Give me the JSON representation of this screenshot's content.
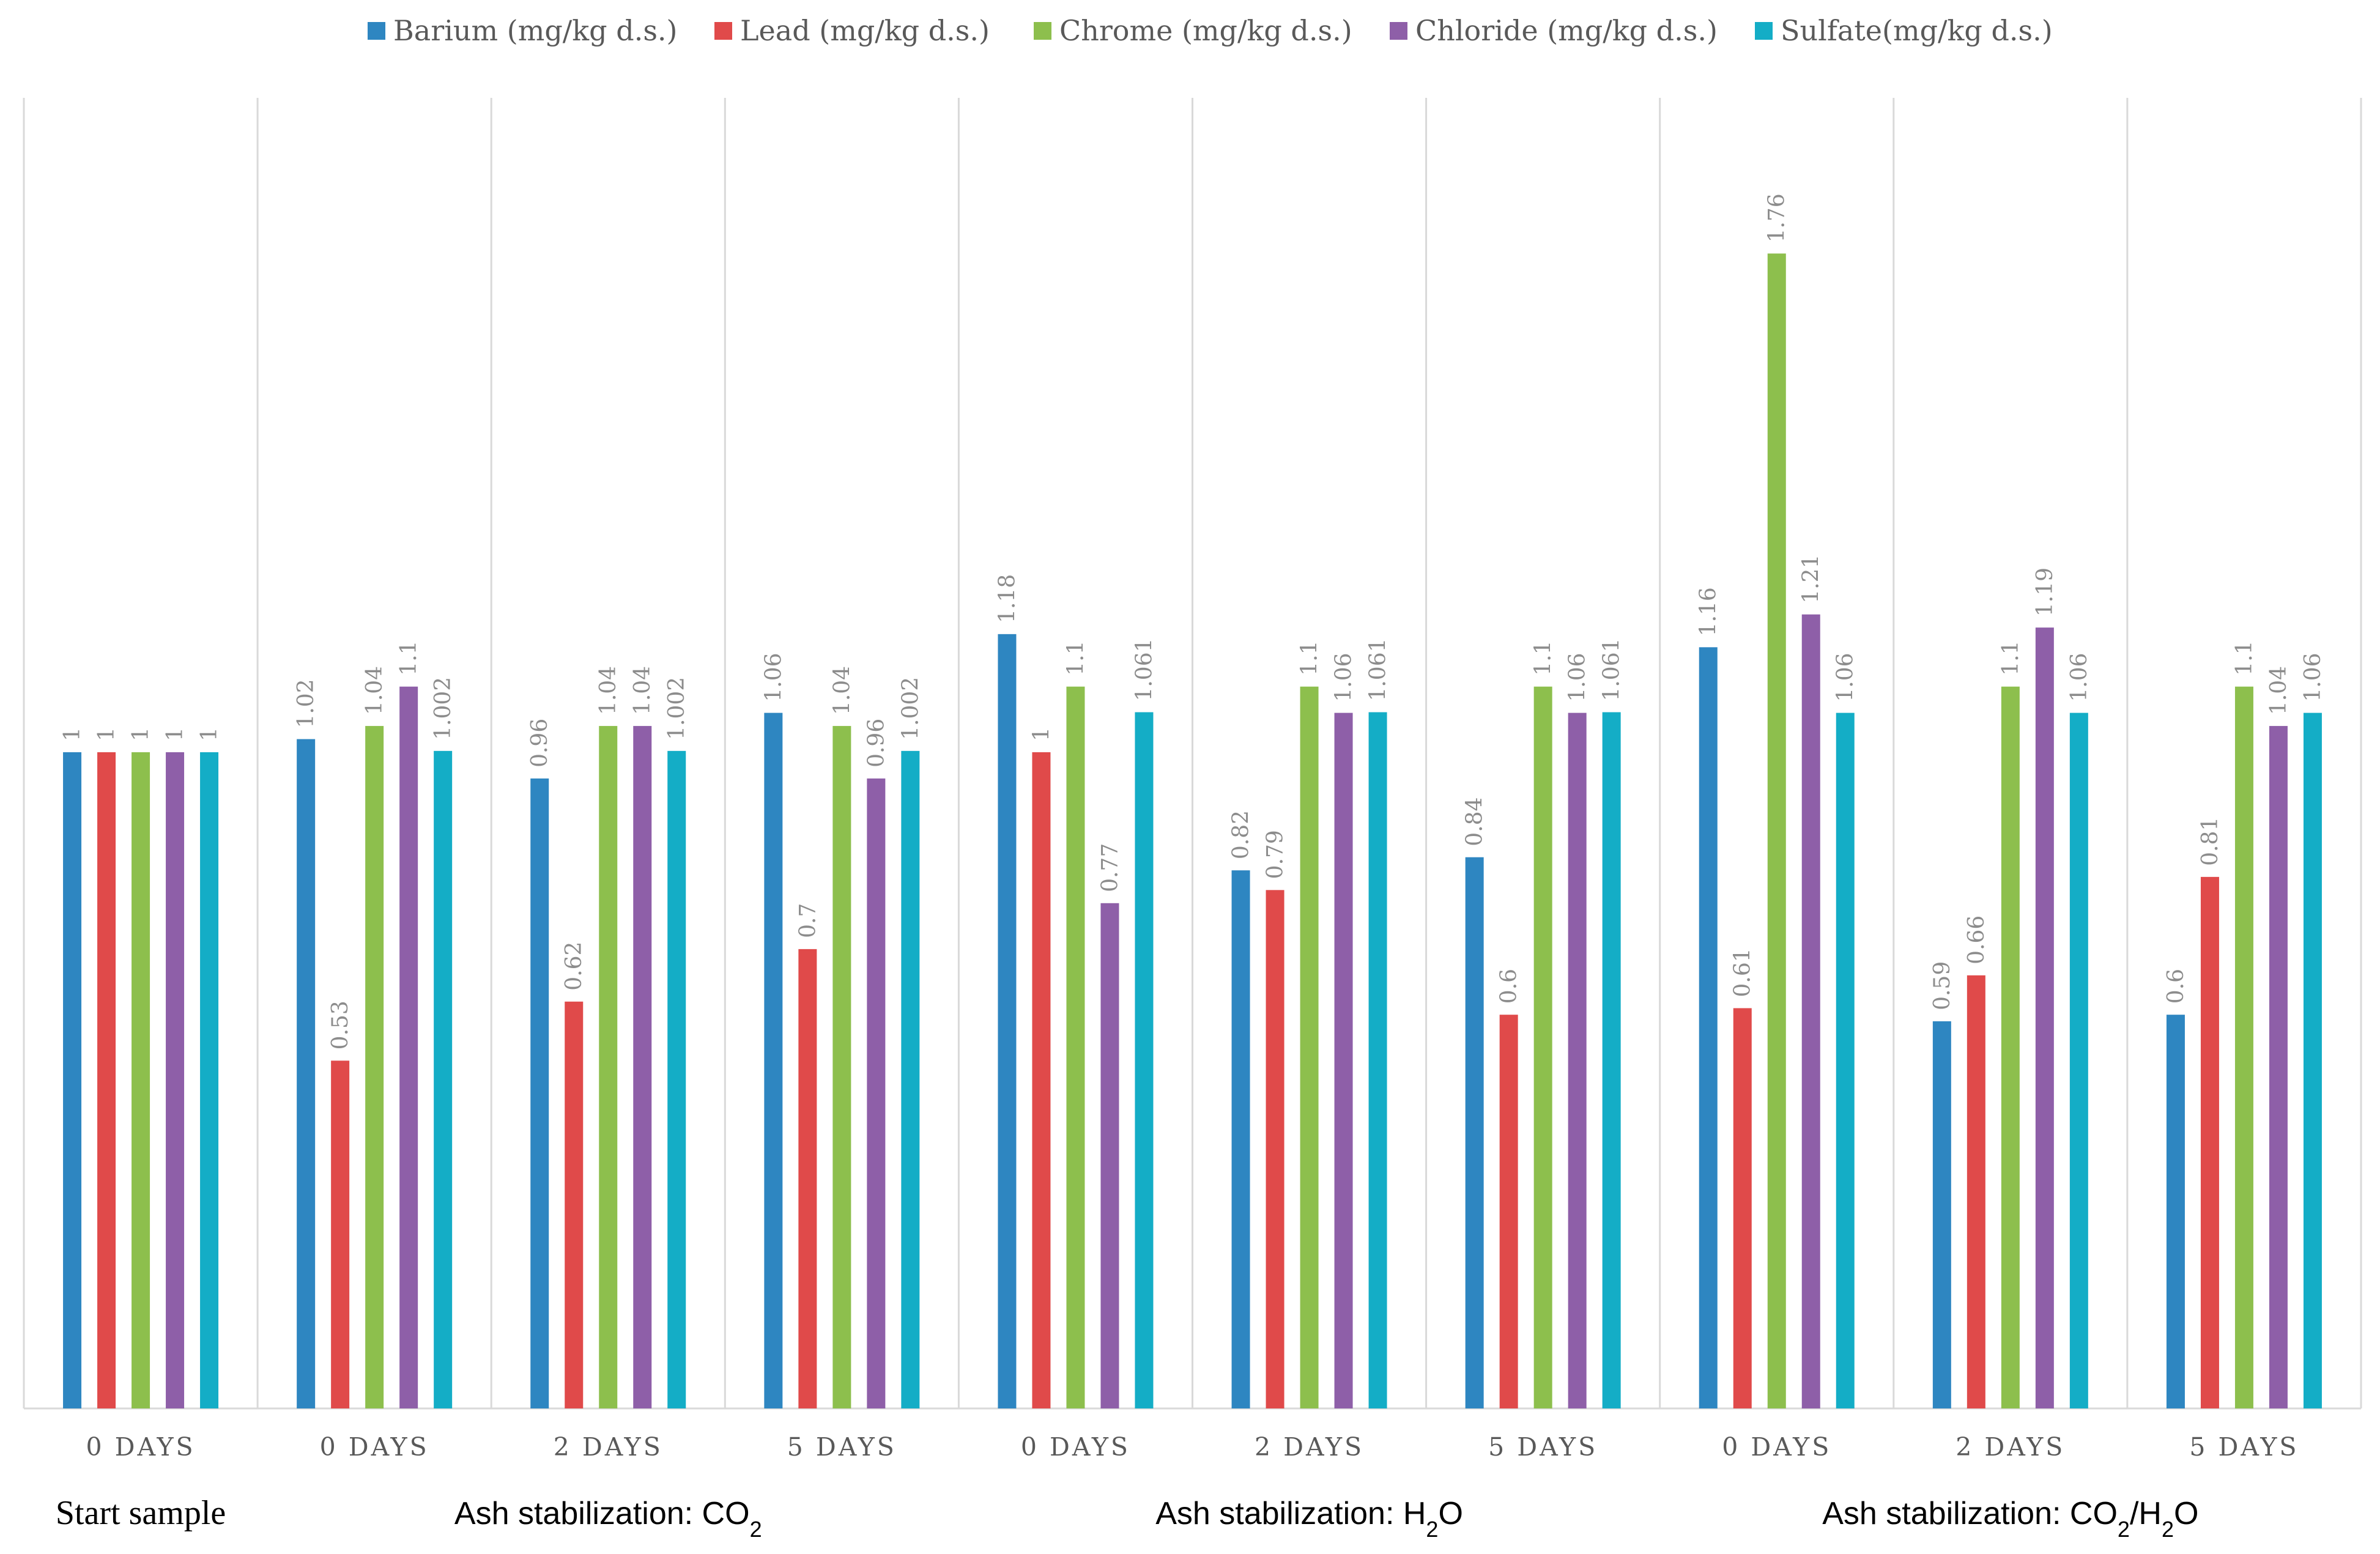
{
  "chart_data": {
    "type": "bar",
    "title": "",
    "xlabel": "",
    "ylabel": "",
    "ylim": [
      0,
      2.0
    ],
    "grid": "vertical category separators",
    "legend_position": "top-center",
    "categories": [
      "0 DAYS",
      "0 DAYS",
      "2 DAYS",
      "5 DAYS",
      "0 DAYS",
      "2 DAYS",
      "5 DAYS",
      "0 DAYS",
      "2 DAYS",
      "5 DAYS"
    ],
    "series": [
      {
        "name": "Barium (mg/kg d.s.)",
        "color": "#2e86c1",
        "values": [
          1,
          1.02,
          0.96,
          1.06,
          1.18,
          0.82,
          0.84,
          1.16,
          0.59,
          0.6
        ],
        "labels": [
          "1",
          "1.02",
          "0.96",
          "1.06",
          "1.18",
          "0.82",
          "0.84",
          "1.16",
          "0.59",
          "0.6"
        ]
      },
      {
        "name": "Lead (mg/kg d.s.)",
        "color": "#e04a4a",
        "values": [
          1,
          0.53,
          0.62,
          0.7,
          1,
          0.79,
          0.6,
          0.61,
          0.66,
          0.81
        ],
        "labels": [
          "1",
          "0.53",
          "0.62",
          "0.7",
          "1",
          "0.79",
          "0.6",
          "0.61",
          "0.66",
          "0.81"
        ]
      },
      {
        "name": "Chrome (mg/kg d.s.)",
        "color": "#8dbf4d",
        "values": [
          1,
          1.04,
          1.04,
          1.04,
          1.1,
          1.1,
          1.1,
          1.76,
          1.1,
          1.1
        ],
        "labels": [
          "1",
          "1.04",
          "1.04",
          "1.04",
          "1.1",
          "1.1",
          "1.1",
          "1.76",
          "1.1",
          "1.1"
        ]
      },
      {
        "name": "Chloride (mg/kg d.s.)",
        "color": "#8e5fa8",
        "values": [
          1,
          1.1,
          1.04,
          0.96,
          0.77,
          1.06,
          1.06,
          1.21,
          1.19,
          1.04
        ],
        "labels": [
          "1",
          "1.1",
          "1.04",
          "0.96",
          "0.77",
          "1.06",
          "1.06",
          "1.21",
          "1.19",
          "1.04"
        ]
      },
      {
        "name": "Sulfate(mg/kg d.s.)",
        "color": "#14adc6",
        "values": [
          1,
          1.002,
          1.002,
          1.002,
          1.061,
          1.061,
          1.061,
          1.06,
          1.06,
          1.06
        ],
        "labels": [
          "1",
          "1.002",
          "1.002",
          "1.002",
          "1.061",
          "1.061",
          "1.061",
          "1.06",
          "1.06",
          "1.06"
        ]
      }
    ],
    "groups": [
      {
        "label": "Start sample",
        "span": [
          0,
          0
        ]
      },
      {
        "label": "Ash stabilization: CO",
        "sub": "2",
        "tail": "",
        "span": [
          1,
          3
        ]
      },
      {
        "label": "Ash stabilization: H",
        "sub": "2",
        "tail": "O",
        "span": [
          4,
          6
        ]
      },
      {
        "label": "Ash stabilization: CO",
        "sub": "2",
        "tail": "/H",
        "sub2": "2",
        "tail2": "O",
        "span": [
          7,
          9
        ]
      }
    ]
  }
}
